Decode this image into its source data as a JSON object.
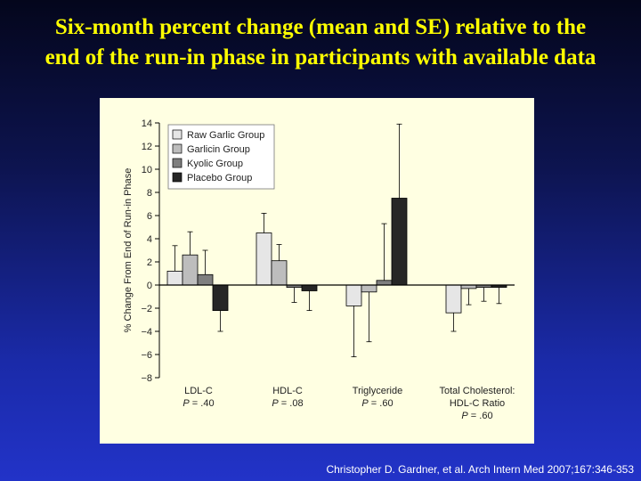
{
  "slide": {
    "title_line1": "Six-month percent change (mean and SE) relative to the",
    "title_line2": "end of the run-in phase in participants with available data",
    "citation": "Christopher D. Gardner, et al. Arch Intern Med 2007;167:346-353"
  },
  "colors": {
    "title": "#ffff00",
    "panel_background": "#ffffe2"
  },
  "chart_data": {
    "type": "bar",
    "ylabel": "% Change From End of Run-in Phase",
    "ylim": [
      -8,
      14
    ],
    "yticks": [
      -8,
      -6,
      -4,
      -2,
      0,
      2,
      4,
      6,
      8,
      10,
      12,
      14
    ],
    "ytick_labels": [
      "−8",
      "−6",
      "−4",
      "−2",
      "0",
      "2",
      "4",
      "6",
      "8",
      "10",
      "12",
      "14"
    ],
    "grid": false,
    "legend_position": "top-left",
    "categories": [
      {
        "name_lines": [
          "LDL-C"
        ],
        "pvalue_label": "P",
        "pvalue_text": "= .40"
      },
      {
        "name_lines": [
          "HDL-C"
        ],
        "pvalue_label": "P",
        "pvalue_text": "= .08"
      },
      {
        "name_lines": [
          "Triglyceride"
        ],
        "pvalue_label": "P",
        "pvalue_text": "= .60"
      },
      {
        "name_lines": [
          "Total Cholesterol:",
          "HDL-C Ratio"
        ],
        "pvalue_label": "P",
        "pvalue_text": "= .60"
      }
    ],
    "series": [
      {
        "name": "Raw Garlic Group",
        "color": "#e6e6e6",
        "values": [
          1.2,
          4.5,
          -1.8,
          -2.4
        ],
        "errors": [
          2.2,
          1.7,
          4.4,
          1.6
        ]
      },
      {
        "name": "Garlicin Group",
        "color": "#bdbdbd",
        "values": [
          2.6,
          2.1,
          -0.6,
          -0.3
        ],
        "errors": [
          2.0,
          1.4,
          4.3,
          1.4
        ]
      },
      {
        "name": "Kyolic Group",
        "color": "#7f7f7f",
        "values": [
          0.9,
          -0.2,
          0.4,
          -0.2
        ],
        "errors": [
          2.1,
          1.3,
          4.9,
          1.2
        ]
      },
      {
        "name": "Placebo Group",
        "color": "#262626",
        "values": [
          -2.2,
          -0.5,
          7.5,
          -0.2
        ],
        "errors": [
          1.8,
          1.7,
          6.4,
          1.4
        ]
      }
    ]
  }
}
